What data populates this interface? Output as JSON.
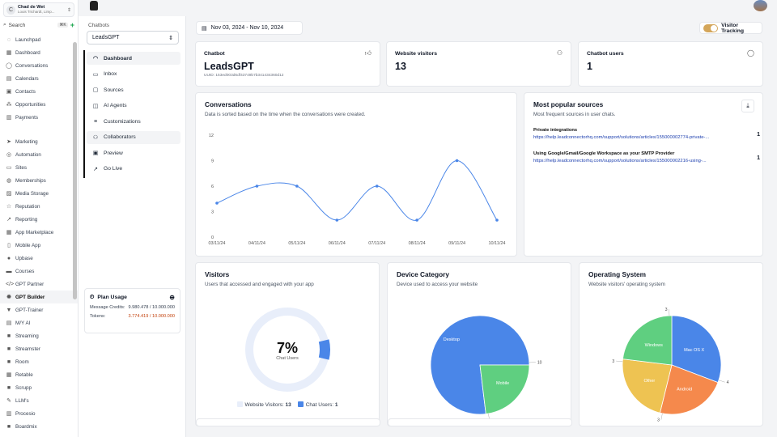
{
  "account": {
    "name": "Chad de Wet",
    "location": "Louis Trichardt, Limp...",
    "initial": "C"
  },
  "search": {
    "label": "Search",
    "kbd": "⌘K",
    "plus": "+"
  },
  "sidebar": {
    "items": [
      {
        "label": "Launchpad",
        "icon": "rocket-icon",
        "sym": "◌"
      },
      {
        "label": "Dashboard",
        "icon": "grid-icon",
        "sym": "▦"
      },
      {
        "label": "Conversations",
        "icon": "chat-icon",
        "sym": "◯"
      },
      {
        "label": "Calendars",
        "icon": "calendar-icon",
        "sym": "▤"
      },
      {
        "label": "Contacts",
        "icon": "contacts-icon",
        "sym": "▣"
      },
      {
        "label": "Opportunities",
        "icon": "opportunities-icon",
        "sym": "⁂"
      },
      {
        "label": "Payments",
        "icon": "payments-icon",
        "sym": "▥"
      },
      {
        "label": "",
        "icon": "spacer",
        "sym": ""
      },
      {
        "label": "Marketing",
        "icon": "send-icon",
        "sym": "➤"
      },
      {
        "label": "Automation",
        "icon": "automation-icon",
        "sym": "◎"
      },
      {
        "label": "Sites",
        "icon": "sites-icon",
        "sym": "▭"
      },
      {
        "label": "Memberships",
        "icon": "memberships-icon",
        "sym": "◍"
      },
      {
        "label": "Media Storage",
        "icon": "media-icon",
        "sym": "▨"
      },
      {
        "label": "Reputation",
        "icon": "star-icon",
        "sym": "☆"
      },
      {
        "label": "Reporting",
        "icon": "reporting-icon",
        "sym": "↗"
      },
      {
        "label": "App Marketplace",
        "icon": "marketplace-icon",
        "sym": "▦"
      },
      {
        "label": "Mobile App",
        "icon": "mobile-icon",
        "sym": "▯"
      },
      {
        "label": "Upbase",
        "icon": "upbase-icon",
        "sym": "●"
      },
      {
        "label": "Courses",
        "icon": "courses-icon",
        "sym": "▬"
      },
      {
        "label": "GPT Partner",
        "icon": "code-icon",
        "sym": "</>"
      },
      {
        "label": "GPT Builder",
        "icon": "gear-icon",
        "sym": "✹"
      },
      {
        "label": "GPT-Trainer",
        "icon": "trainer-icon",
        "sym": "▼"
      },
      {
        "label": "M/Y AI",
        "icon": "ai-icon",
        "sym": "▤"
      },
      {
        "label": "Streaming",
        "icon": "video-icon",
        "sym": "■"
      },
      {
        "label": "Streamster",
        "icon": "streamster-icon",
        "sym": "■"
      },
      {
        "label": "Room",
        "icon": "room-icon",
        "sym": "■"
      },
      {
        "label": "Retable",
        "icon": "table-icon",
        "sym": "▦"
      },
      {
        "label": "Scrupp",
        "icon": "scrupp-icon",
        "sym": "■"
      },
      {
        "label": "LLM's",
        "icon": "pen-icon",
        "sym": "✎"
      },
      {
        "label": "Procesio",
        "icon": "procesio-icon",
        "sym": "▥"
      },
      {
        "label": "Boardmix",
        "icon": "boardmix-icon",
        "sym": "■"
      }
    ],
    "active": "GPT Builder"
  },
  "chatbots": {
    "label": "Chatbots",
    "selected": "LeadsGPT",
    "nav": [
      {
        "label": "Dashboard",
        "icon": "dashboard-icon",
        "sym": "◠"
      },
      {
        "label": "Inbox",
        "icon": "inbox-icon",
        "sym": "▭"
      },
      {
        "label": "Sources",
        "icon": "sources-icon",
        "sym": "▢"
      },
      {
        "label": "AI Agents",
        "icon": "agents-icon",
        "sym": "◫"
      },
      {
        "label": "Customizations",
        "icon": "sliders-icon",
        "sym": "≡"
      },
      {
        "label": "Collaborators",
        "icon": "users-icon",
        "sym": "⚇"
      },
      {
        "label": "Preview",
        "icon": "preview-icon",
        "sym": "▣"
      },
      {
        "label": "Go Live",
        "icon": "go-live-icon",
        "sym": "↗"
      }
    ]
  },
  "plan": {
    "title": "Plan Usage",
    "credits_label": "Message Credits:",
    "credits_value": "9.980.478 / 10.000.000",
    "tokens_label": "Tokens:",
    "tokens_value": "3.774.419 / 10.000.000"
  },
  "header": {
    "date_range": "Nov 03, 2024 - Nov 10, 2024",
    "tracking_label": "Visitor Tracking",
    "tracking_on": true
  },
  "stats": {
    "chatbot": {
      "title": "Chatbot",
      "name": "LeadsGPT",
      "uuid": "UUID: 153ed003d6df43749b7b341434360d12"
    },
    "visitors": {
      "title": "Website visitors",
      "value": "13"
    },
    "users": {
      "title": "Chatbot users",
      "value": "1"
    }
  },
  "conversations": {
    "title": "Conversations",
    "desc": "Data is sorted based on the time when the conversations were created."
  },
  "sources": {
    "title": "Most popular sources",
    "desc": "Most frequent sources in user chats.",
    "items": [
      {
        "name": "Private integrations",
        "url": "https://help.leadconnectorhq.com/support/solutions/articles/155000002774-private-...",
        "count": "1"
      },
      {
        "name": "Using Google/Gmail/Google Workspace as your SMTP Provider",
        "url": "https://help.leadconnectorhq.com/support/solutions/articles/155000002216-using-...",
        "count": "1"
      }
    ]
  },
  "visitors": {
    "title": "Visitors",
    "desc": "Users that accessed and engaged with your app",
    "center": "7%",
    "center_sub": "Chat Users",
    "legend_visitors": "Website Visitors:",
    "legend_visitors_val": "13",
    "legend_users": "Chat Users:",
    "legend_users_val": "1"
  },
  "device": {
    "title": "Device Category",
    "desc": "Device used to access your website"
  },
  "os": {
    "title": "Operating System",
    "desc": "Website visitors' operating system"
  },
  "colors": {
    "accent": "#4a86e8",
    "green": "#5fcf80",
    "orange": "#f5894c",
    "yellow": "#eec352",
    "ring": "#e8eefa"
  },
  "chart_data": [
    {
      "type": "line",
      "title": "Conversations",
      "x": [
        "03/11/24",
        "04/11/24",
        "05/11/24",
        "06/11/24",
        "07/11/24",
        "08/11/24",
        "09/11/24",
        "10/11/24"
      ],
      "series": [
        {
          "values": [
            4,
            6,
            6,
            2,
            6,
            2,
            9,
            2
          ]
        }
      ],
      "yticks": [
        0,
        3,
        6,
        9,
        12
      ],
      "ylim": [
        0,
        12
      ]
    },
    {
      "type": "pie",
      "title": "Visitors",
      "categories": [
        "Website Visitors",
        "Chat Users"
      ],
      "values": [
        13,
        1
      ],
      "percent": "7%"
    },
    {
      "type": "pie",
      "title": "Device Category",
      "categories": [
        "Desktop",
        "Mobile"
      ],
      "values": [
        10,
        3
      ]
    },
    {
      "type": "pie",
      "title": "Operating System",
      "categories": [
        "Mac OS X",
        "Android",
        "Other",
        "Windows"
      ],
      "values": [
        4,
        3,
        3,
        3
      ]
    }
  ]
}
